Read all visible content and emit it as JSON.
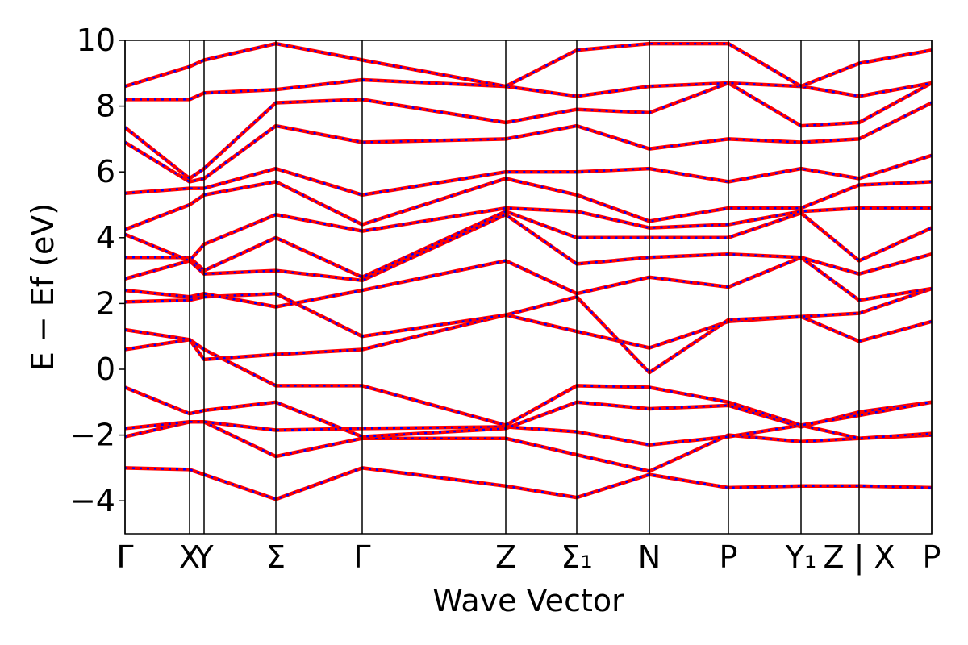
{
  "chart_data": {
    "type": "line",
    "xlabel": "Wave Vector",
    "ylabel": "E − Ef (eV)",
    "xlim": [
      0,
      1000
    ],
    "ylim": [
      -5,
      10
    ],
    "yticks": [
      {
        "value": -4,
        "label": "−4"
      },
      {
        "value": -2,
        "label": "−2"
      },
      0,
      2,
      4,
      6,
      8,
      10
    ],
    "xticks": [
      {
        "value": 0,
        "label": "Γ"
      },
      {
        "value": 80,
        "label": "X"
      },
      {
        "value": 98,
        "label": "Y"
      },
      {
        "value": 187,
        "label": "Σ"
      },
      {
        "value": 294,
        "label": "Γ"
      },
      {
        "value": 472,
        "label": "Z"
      },
      {
        "value": 560,
        "label": "Σ₁"
      },
      {
        "value": 650,
        "label": "N"
      },
      {
        "value": 748,
        "label": "P"
      },
      {
        "value": 838,
        "label": "Y₁"
      },
      {
        "value": 910,
        "label": "Z | X"
      },
      {
        "value": 1000,
        "label": "P"
      }
    ],
    "x": [
      0,
      80,
      98,
      187,
      294,
      472,
      560,
      650,
      748,
      838,
      910,
      1000
    ],
    "line_color": "#ff0000",
    "dash_color": "#0000ff",
    "series": [
      {
        "values": [
          -3.0,
          -3.05,
          -3.2,
          -3.95,
          -3.0,
          -3.55,
          -3.9,
          -3.2,
          -3.6,
          -3.55,
          -3.55,
          -3.6
        ]
      },
      {
        "values": [
          -2.05,
          -1.6,
          -1.6,
          -2.65,
          -2.1,
          -2.1,
          -2.6,
          -3.1,
          -2.0,
          -2.2,
          -2.1,
          -2.0
        ]
      },
      {
        "values": [
          -1.8,
          -1.6,
          -1.6,
          -1.85,
          -1.8,
          -1.75,
          -1.9,
          -2.3,
          -2.05,
          -1.7,
          -2.1,
          -1.95
        ]
      },
      {
        "values": [
          -0.55,
          -1.35,
          -1.25,
          -1.0,
          -2.05,
          -1.8,
          -1.0,
          -1.2,
          -1.1,
          -1.75,
          -1.3,
          -1.0
        ]
      },
      {
        "values": [
          0.6,
          0.9,
          0.6,
          -0.5,
          -0.5,
          -1.7,
          -0.5,
          -0.55,
          -1.0,
          -1.7,
          -1.4,
          -1.0
        ]
      },
      {
        "values": [
          1.2,
          0.9,
          0.3,
          0.45,
          0.6,
          1.65,
          1.15,
          0.65,
          1.45,
          1.6,
          0.85,
          1.45
        ]
      },
      {
        "values": [
          2.05,
          2.1,
          2.2,
          2.3,
          1.0,
          1.65,
          2.2,
          -0.1,
          1.5,
          1.6,
          1.7,
          2.45
        ]
      },
      {
        "values": [
          2.4,
          2.2,
          2.3,
          1.9,
          2.4,
          3.3,
          2.3,
          2.8,
          2.5,
          3.4,
          2.1,
          2.45
        ]
      },
      {
        "values": [
          2.75,
          3.3,
          2.9,
          3.0,
          2.7,
          4.7,
          3.2,
          3.4,
          3.5,
          3.4,
          2.9,
          3.5
        ]
      },
      {
        "values": [
          3.4,
          3.4,
          3.0,
          4.0,
          2.8,
          4.8,
          4.0,
          4.0,
          4.0,
          4.75,
          3.3,
          4.3
        ]
      },
      {
        "values": [
          4.1,
          3.3,
          3.8,
          4.7,
          4.2,
          4.9,
          4.8,
          4.3,
          4.4,
          4.8,
          4.9,
          4.9
        ]
      },
      {
        "values": [
          4.25,
          5.0,
          5.3,
          5.7,
          4.4,
          5.8,
          5.3,
          4.5,
          4.9,
          4.9,
          5.6,
          5.7
        ]
      },
      {
        "values": [
          5.35,
          5.5,
          5.5,
          6.1,
          5.3,
          6.0,
          6.0,
          6.1,
          5.7,
          6.1,
          5.8,
          6.5
        ]
      },
      {
        "values": [
          6.9,
          5.7,
          5.8,
          7.4,
          6.9,
          7.0,
          7.4,
          6.7,
          7.0,
          6.9,
          7.0,
          8.1
        ]
      },
      {
        "values": [
          7.35,
          5.8,
          6.1,
          8.1,
          8.2,
          7.5,
          7.9,
          7.8,
          8.7,
          7.4,
          7.5,
          8.7
        ]
      },
      {
        "values": [
          8.2,
          8.2,
          8.4,
          8.5,
          8.8,
          8.6,
          8.3,
          8.6,
          8.7,
          8.6,
          8.3,
          8.7
        ]
      },
      {
        "values": [
          8.6,
          9.2,
          9.4,
          9.9,
          9.4,
          8.6,
          9.7,
          9.9,
          9.9,
          8.6,
          9.3,
          9.7
        ]
      }
    ]
  }
}
